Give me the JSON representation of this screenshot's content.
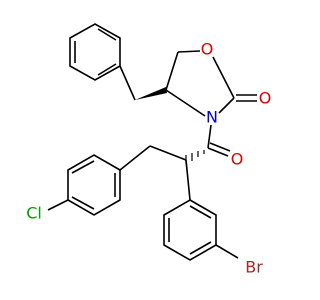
{
  "atoms": {
    "ring_oxygen": "O",
    "carbonyl_oxygen": "O",
    "nitrogen": "N",
    "amide_oxygen": "O",
    "chlorine": "Cl",
    "bromine": "Br"
  }
}
